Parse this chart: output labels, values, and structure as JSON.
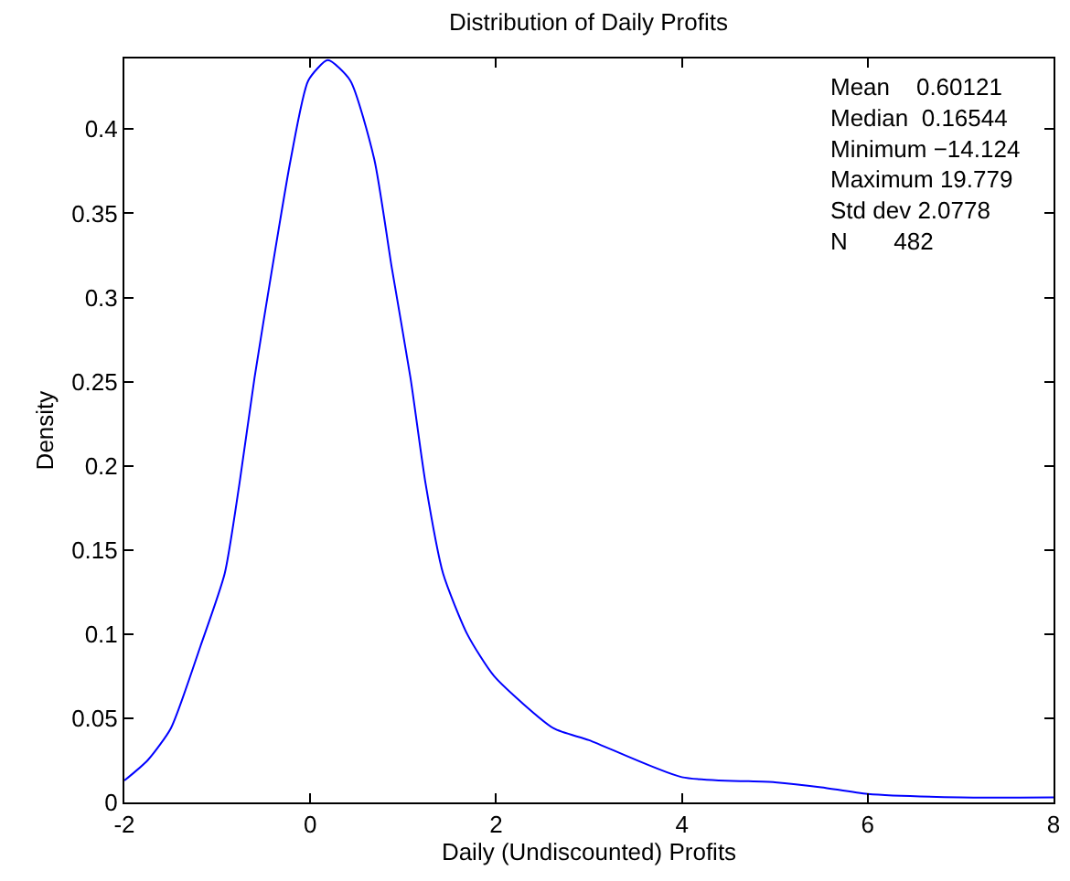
{
  "chart_data": {
    "type": "line",
    "title": "Distribution of Daily Profits",
    "xlabel": "Daily (Undiscounted) Profits",
    "ylabel": "Density",
    "x": [
      -2,
      -1.75,
      -1.5,
      -1.18,
      -0.92,
      -0.76,
      -0.6,
      -0.41,
      -0.21,
      -0.02,
      0.19,
      0.43,
      0.69,
      0.88,
      1.08,
      1.24,
      1.43,
      1.69,
      1.98,
      2.62,
      3,
      4,
      5,
      5.5,
      6,
      7,
      8
    ],
    "series": [
      {
        "color": "#0000ff",
        "values": [
          0.013,
          0.025,
          0.044,
          0.093,
          0.136,
          0.19,
          0.252,
          0.317,
          0.382,
          0.429,
          0.441,
          0.429,
          0.382,
          0.317,
          0.252,
          0.19,
          0.136,
          0.1,
          0.075,
          0.044,
          0.037,
          0.015,
          0.012,
          0.009,
          0.005,
          0.003,
          0.003
        ]
      }
    ],
    "xlim": [
      -2,
      8
    ],
    "xticks": [
      -2,
      0,
      2,
      4,
      6,
      8
    ],
    "ylim": [
      0,
      0.442
    ],
    "yticks": [
      0,
      0.05,
      0.1,
      0.15,
      0.2,
      0.25,
      0.3,
      0.35,
      0.4
    ],
    "annotations": [
      "Mean    0.60121\nMedian  0.16544\nMinimum −14.124\nMaximum 19.779\nStd dev 2.0778\nN       482"
    ],
    "marker": "none",
    "line_style": "solid"
  }
}
